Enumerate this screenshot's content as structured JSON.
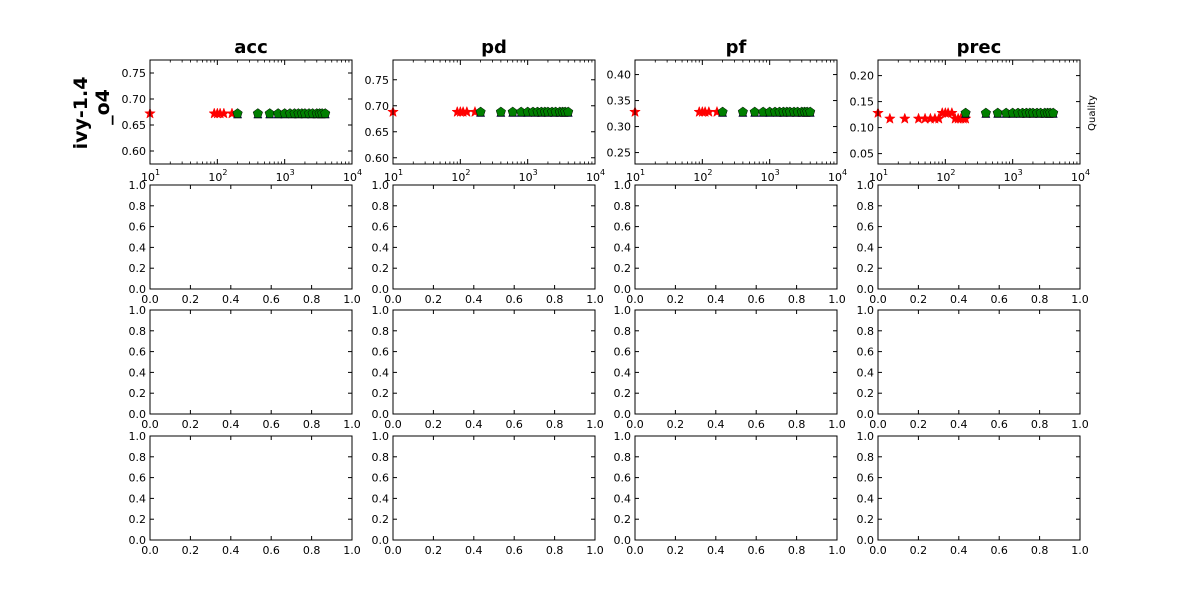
{
  "figure": {
    "row_label_line1": "ivy-1.4",
    "row_label_line2": "_o4",
    "side_label": "Quality"
  },
  "colors": {
    "series_a": "#ff0000",
    "series_b": "#007f00",
    "series_c": "#0000ff",
    "axes": "#000000",
    "background": "#ffffff"
  },
  "chart_data": [
    {
      "type": "scatter",
      "title": "acc",
      "x_scale": "log",
      "xlim": [
        10,
        10000
      ],
      "ylim": [
        0.575,
        0.775
      ],
      "y_ticks": [
        "0.60",
        "0.65",
        "0.70",
        "0.75"
      ],
      "x_ticks": [
        10,
        100,
        1000,
        10000
      ],
      "series": [
        {
          "marker": "star",
          "color": "red",
          "x": [
            10,
            90,
            100,
            110,
            125,
            165
          ],
          "y": [
            0.672,
            0.672,
            0.672,
            0.672,
            0.672,
            0.672
          ]
        },
        {
          "marker": "triangle",
          "color": "blue",
          "x": [
            200,
            400,
            600,
            800,
            1000,
            1300,
            1600,
            2000,
            2500,
            3000,
            3500,
            4000
          ],
          "y": [
            0.668,
            0.668,
            0.668,
            0.668,
            0.668,
            0.668,
            0.668,
            0.668,
            0.668,
            0.668,
            0.668,
            0.668
          ]
        },
        {
          "marker": "pentagon",
          "color": "green",
          "x": [
            200,
            400,
            600,
            800,
            1000,
            1200,
            1400,
            1600,
            1800,
            2000,
            2300,
            2600,
            3000,
            3300,
            3600,
            4000
          ],
          "y": [
            0.672,
            0.672,
            0.672,
            0.672,
            0.672,
            0.672,
            0.672,
            0.672,
            0.672,
            0.672,
            0.672,
            0.672,
            0.672,
            0.672,
            0.672,
            0.672
          ]
        }
      ]
    },
    {
      "type": "scatter",
      "title": "pd",
      "x_scale": "log",
      "xlim": [
        10,
        10000
      ],
      "ylim": [
        0.588,
        0.788
      ],
      "y_ticks": [
        "0.60",
        "0.65",
        "0.70",
        "0.75"
      ],
      "x_ticks": [
        10,
        100,
        1000,
        10000
      ],
      "series": [
        {
          "marker": "star",
          "color": "red",
          "x": [
            10,
            90,
            100,
            110,
            125,
            165
          ],
          "y": [
            0.688,
            0.688,
            0.688,
            0.688,
            0.688,
            0.688
          ]
        },
        {
          "marker": "triangle",
          "color": "blue",
          "x": [
            200,
            400,
            600,
            800,
            1000,
            1300,
            1600,
            2000,
            2500,
            3000,
            3500,
            4000
          ],
          "y": [
            0.684,
            0.684,
            0.684,
            0.684,
            0.684,
            0.684,
            0.684,
            0.684,
            0.684,
            0.684,
            0.684,
            0.684
          ]
        },
        {
          "marker": "pentagon",
          "color": "green",
          "x": [
            200,
            400,
            600,
            800,
            1000,
            1200,
            1400,
            1600,
            1800,
            2000,
            2300,
            2600,
            3000,
            3300,
            3600,
            4000
          ],
          "y": [
            0.688,
            0.688,
            0.688,
            0.688,
            0.688,
            0.688,
            0.688,
            0.688,
            0.688,
            0.688,
            0.688,
            0.688,
            0.688,
            0.688,
            0.688,
            0.688
          ]
        }
      ]
    },
    {
      "type": "scatter",
      "title": "pf",
      "x_scale": "log",
      "xlim": [
        10,
        10000
      ],
      "ylim": [
        0.228,
        0.428
      ],
      "y_ticks": [
        "0.25",
        "0.30",
        "0.35",
        "0.40"
      ],
      "x_ticks": [
        10,
        100,
        1000,
        10000
      ],
      "series": [
        {
          "marker": "star",
          "color": "red",
          "x": [
            10,
            90,
            100,
            110,
            125,
            165
          ],
          "y": [
            0.328,
            0.328,
            0.328,
            0.328,
            0.328,
            0.328
          ]
        },
        {
          "marker": "triangle",
          "color": "blue",
          "x": [
            200,
            400,
            600,
            800,
            1000,
            1300,
            1600,
            2000,
            2500,
            3000,
            3500,
            4000
          ],
          "y": [
            0.324,
            0.324,
            0.324,
            0.324,
            0.324,
            0.324,
            0.324,
            0.324,
            0.324,
            0.324,
            0.324,
            0.324
          ]
        },
        {
          "marker": "pentagon",
          "color": "green",
          "x": [
            200,
            400,
            600,
            800,
            1000,
            1200,
            1400,
            1600,
            1800,
            2000,
            2300,
            2600,
            3000,
            3300,
            3600,
            4000
          ],
          "y": [
            0.328,
            0.328,
            0.328,
            0.328,
            0.328,
            0.328,
            0.328,
            0.328,
            0.328,
            0.328,
            0.328,
            0.328,
            0.328,
            0.328,
            0.328,
            0.328
          ]
        }
      ]
    },
    {
      "type": "scatter",
      "title": "prec",
      "x_scale": "log",
      "xlim": [
        10,
        10000
      ],
      "ylim": [
        0.03,
        0.23
      ],
      "y_ticks": [
        "0.05",
        "0.10",
        "0.15",
        "0.20"
      ],
      "x_ticks": [
        10,
        100,
        1000,
        10000
      ],
      "series": [
        {
          "marker": "star",
          "color": "red",
          "x": [
            10,
            15,
            25,
            40,
            50,
            60,
            70,
            80,
            90,
            100,
            110,
            125,
            140,
            155,
            170,
            185,
            200
          ],
          "y": [
            0.128,
            0.117,
            0.117,
            0.117,
            0.117,
            0.117,
            0.117,
            0.117,
            0.128,
            0.128,
            0.128,
            0.128,
            0.117,
            0.117,
            0.117,
            0.117,
            0.117
          ]
        },
        {
          "marker": "triangle",
          "color": "blue",
          "x": [
            200,
            400,
            600,
            800,
            1000,
            1300,
            1600,
            2000,
            2500,
            3000,
            3500,
            4000
          ],
          "y": [
            0.124,
            0.124,
            0.124,
            0.124,
            0.124,
            0.124,
            0.124,
            0.124,
            0.124,
            0.124,
            0.124,
            0.124
          ]
        },
        {
          "marker": "pentagon",
          "color": "green",
          "x": [
            200,
            400,
            600,
            800,
            1000,
            1200,
            1400,
            1600,
            1800,
            2000,
            2300,
            2600,
            3000,
            3300,
            3600,
            4000
          ],
          "y": [
            0.128,
            0.128,
            0.128,
            0.128,
            0.128,
            0.128,
            0.128,
            0.128,
            0.128,
            0.128,
            0.128,
            0.128,
            0.128,
            0.128,
            0.128,
            0.128
          ]
        }
      ]
    },
    {
      "type": "scatter",
      "title": "",
      "xlim": [
        0,
        1
      ],
      "ylim": [
        0,
        1
      ],
      "x_ticks": [
        "0.0",
        "0.2",
        "0.4",
        "0.6",
        "0.8",
        "1.0"
      ],
      "y_ticks": [
        "0.0",
        "0.2",
        "0.4",
        "0.6",
        "0.8",
        "1.0"
      ],
      "series": []
    },
    {
      "type": "scatter",
      "title": "",
      "xlim": [
        0,
        1
      ],
      "ylim": [
        0,
        1
      ],
      "x_ticks": [
        "0.0",
        "0.2",
        "0.4",
        "0.6",
        "0.8",
        "1.0"
      ],
      "y_ticks": [
        "0.0",
        "0.2",
        "0.4",
        "0.6",
        "0.8",
        "1.0"
      ],
      "series": []
    },
    {
      "type": "scatter",
      "title": "",
      "xlim": [
        0,
        1
      ],
      "ylim": [
        0,
        1
      ],
      "x_ticks": [
        "0.0",
        "0.2",
        "0.4",
        "0.6",
        "0.8",
        "1.0"
      ],
      "y_ticks": [
        "0.0",
        "0.2",
        "0.4",
        "0.6",
        "0.8",
        "1.0"
      ],
      "series": []
    },
    {
      "type": "scatter",
      "title": "",
      "xlim": [
        0,
        1
      ],
      "ylim": [
        0,
        1
      ],
      "x_ticks": [
        "0.0",
        "0.2",
        "0.4",
        "0.6",
        "0.8",
        "1.0"
      ],
      "y_ticks": [
        "0.0",
        "0.2",
        "0.4",
        "0.6",
        "0.8",
        "1.0"
      ],
      "series": []
    },
    {
      "type": "scatter",
      "title": "",
      "xlim": [
        0,
        1
      ],
      "ylim": [
        0,
        1
      ],
      "x_ticks": [
        "0.0",
        "0.2",
        "0.4",
        "0.6",
        "0.8",
        "1.0"
      ],
      "y_ticks": [
        "0.0",
        "0.2",
        "0.4",
        "0.6",
        "0.8",
        "1.0"
      ],
      "series": []
    },
    {
      "type": "scatter",
      "title": "",
      "xlim": [
        0,
        1
      ],
      "ylim": [
        0,
        1
      ],
      "x_ticks": [
        "0.0",
        "0.2",
        "0.4",
        "0.6",
        "0.8",
        "1.0"
      ],
      "y_ticks": [
        "0.0",
        "0.2",
        "0.4",
        "0.6",
        "0.8",
        "1.0"
      ],
      "series": []
    },
    {
      "type": "scatter",
      "title": "",
      "xlim": [
        0,
        1
      ],
      "ylim": [
        0,
        1
      ],
      "x_ticks": [
        "0.0",
        "0.2",
        "0.4",
        "0.6",
        "0.8",
        "1.0"
      ],
      "y_ticks": [
        "0.0",
        "0.2",
        "0.4",
        "0.6",
        "0.8",
        "1.0"
      ],
      "series": []
    },
    {
      "type": "scatter",
      "title": "",
      "xlim": [
        0,
        1
      ],
      "ylim": [
        0,
        1
      ],
      "x_ticks": [
        "0.0",
        "0.2",
        "0.4",
        "0.6",
        "0.8",
        "1.0"
      ],
      "y_ticks": [
        "0.0",
        "0.2",
        "0.4",
        "0.6",
        "0.8",
        "1.0"
      ],
      "series": []
    },
    {
      "type": "scatter",
      "title": "",
      "xlim": [
        0,
        1
      ],
      "ylim": [
        0,
        1
      ],
      "x_ticks": [
        "0.0",
        "0.2",
        "0.4",
        "0.6",
        "0.8",
        "1.0"
      ],
      "y_ticks": [
        "0.0",
        "0.2",
        "0.4",
        "0.6",
        "0.8",
        "1.0"
      ],
      "series": []
    },
    {
      "type": "scatter",
      "title": "",
      "xlim": [
        0,
        1
      ],
      "ylim": [
        0,
        1
      ],
      "x_ticks": [
        "0.0",
        "0.2",
        "0.4",
        "0.6",
        "0.8",
        "1.0"
      ],
      "y_ticks": [
        "0.0",
        "0.2",
        "0.4",
        "0.6",
        "0.8",
        "1.0"
      ],
      "series": []
    },
    {
      "type": "scatter",
      "title": "",
      "xlim": [
        0,
        1
      ],
      "ylim": [
        0,
        1
      ],
      "x_ticks": [
        "0.0",
        "0.2",
        "0.4",
        "0.6",
        "0.8",
        "1.0"
      ],
      "y_ticks": [
        "0.0",
        "0.2",
        "0.4",
        "0.6",
        "0.8",
        "1.0"
      ],
      "series": []
    },
    {
      "type": "scatter",
      "title": "",
      "xlim": [
        0,
        1
      ],
      "ylim": [
        0,
        1
      ],
      "x_ticks": [
        "0.0",
        "0.2",
        "0.4",
        "0.6",
        "0.8",
        "1.0"
      ],
      "y_ticks": [
        "0.0",
        "0.2",
        "0.4",
        "0.6",
        "0.8",
        "1.0"
      ],
      "series": []
    }
  ]
}
